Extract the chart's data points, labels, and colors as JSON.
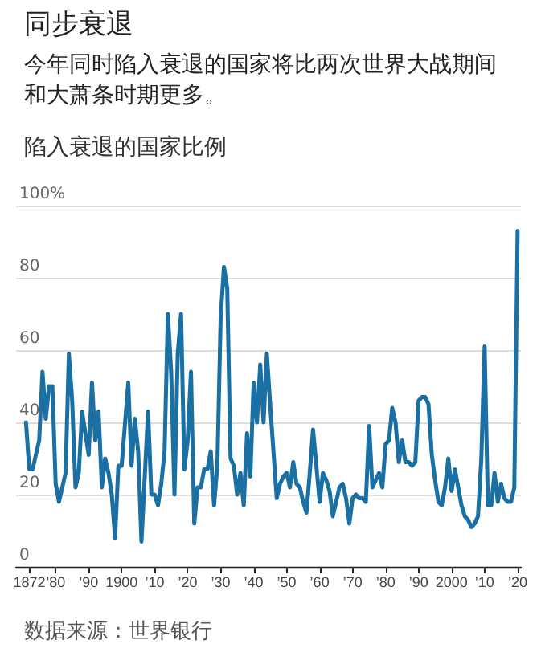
{
  "chart_data": {
    "type": "line",
    "title": "同步衰退",
    "subtitle": "今年同时陷入衰退的国家将比两次世界大战期间和大萧条时期更多。",
    "ylabel": "陷入衰退的国家比例",
    "annotations": [
      "数据来源：世界银行"
    ],
    "x": [
      1871,
      1872,
      1873,
      1875,
      1876,
      1877,
      1878,
      1879,
      1880,
      1881,
      1883,
      1884,
      1885,
      1886,
      1887,
      1888,
      1890,
      1891,
      1892,
      1893,
      1894,
      1895,
      1896,
      1897,
      1898,
      1899,
      1900,
      1902,
      1903,
      1904,
      1905,
      1906,
      1908,
      1909,
      1910,
      1911,
      1912,
      1913,
      1914,
      1915,
      1916,
      1917,
      1918,
      1919,
      1920,
      1921,
      1922,
      1923,
      1924,
      1925,
      1926,
      1927,
      1928,
      1929,
      1930,
      1931,
      1932,
      1933,
      1934,
      1935,
      1936,
      1937,
      1938,
      1939,
      1940,
      1941,
      1942,
      1943,
      1944,
      1945,
      1946,
      1947,
      1948,
      1949,
      1950,
      1951,
      1952,
      1953,
      1954,
      1955,
      1956,
      1957,
      1958,
      1959,
      1960,
      1961,
      1962,
      1963,
      1964,
      1965,
      1966,
      1967,
      1968,
      1969,
      1970,
      1971,
      1972,
      1973,
      1974,
      1975,
      1976,
      1977,
      1978,
      1979,
      1980,
      1981,
      1982,
      1983,
      1984,
      1985,
      1986,
      1987,
      1988,
      1989,
      1990,
      1991,
      1992,
      1993,
      1994,
      1995,
      1996,
      1997,
      1998,
      1999,
      2000,
      2001,
      2002,
      2003,
      2004,
      2005,
      2006,
      2007,
      2008,
      2009,
      2010,
      2011,
      2012,
      2013,
      2014,
      2015,
      2016,
      2017,
      2018,
      2019,
      2020
    ],
    "series": [
      {
        "color": "#1a6fa3",
        "values": [
          40,
          27,
          27,
          35,
          54,
          41,
          50,
          50,
          23,
          18,
          26,
          59,
          46,
          22,
          26,
          43,
          31,
          51,
          35,
          43,
          22,
          30,
          26,
          20,
          8,
          28,
          28,
          51,
          28,
          41,
          32,
          7,
          43,
          20,
          20,
          17,
          23,
          32,
          70,
          54,
          20,
          59,
          70,
          27,
          35,
          54,
          12,
          22,
          22,
          27,
          27,
          32,
          17,
          28,
          69,
          83,
          77,
          30,
          28,
          20,
          26,
          17,
          37,
          25,
          51,
          40,
          56,
          40,
          59,
          45,
          32,
          19,
          23,
          25,
          26,
          22,
          29,
          23,
          22,
          18,
          15,
          26,
          38,
          28,
          18,
          26,
          24,
          21,
          14,
          18,
          22,
          23,
          19,
          12,
          19,
          20,
          19,
          19,
          18,
          39,
          22,
          24,
          26,
          22,
          34,
          35,
          44,
          40,
          29,
          35,
          29,
          29,
          28,
          29,
          46,
          47,
          47,
          45,
          31,
          24,
          18,
          17,
          22,
          30,
          21,
          27,
          22,
          17,
          14,
          13,
          11,
          12,
          14,
          30,
          61,
          17,
          17,
          26,
          18,
          23,
          19,
          18,
          18,
          22,
          93
        ]
      }
    ],
    "xlim": [
      1868,
      2021
    ],
    "xticks": [
      {
        "value": 1872,
        "label": "1872"
      },
      {
        "value": 1880,
        "label": "’80"
      },
      {
        "value": 1890,
        "label": "’90"
      },
      {
        "value": 1900,
        "label": "1900"
      },
      {
        "value": 1910,
        "label": "’10"
      },
      {
        "value": 1920,
        "label": "’20"
      },
      {
        "value": 1930,
        "label": "’30"
      },
      {
        "value": 1940,
        "label": "’40"
      },
      {
        "value": 1950,
        "label": "’50"
      },
      {
        "value": 1960,
        "label": "’60"
      },
      {
        "value": 1970,
        "label": "’70"
      },
      {
        "value": 1980,
        "label": "’80"
      },
      {
        "value": 1990,
        "label": "’90"
      },
      {
        "value": 2000,
        "label": "2000"
      },
      {
        "value": 2010,
        "label": "’10"
      },
      {
        "value": 2020,
        "label": "’20"
      }
    ],
    "ylim": [
      0,
      100
    ],
    "yticks": [
      0,
      20,
      40,
      60,
      80,
      {
        "value": 100,
        "label": "100%"
      }
    ],
    "grid": "y",
    "marker": "none",
    "line_style": "solid"
  }
}
